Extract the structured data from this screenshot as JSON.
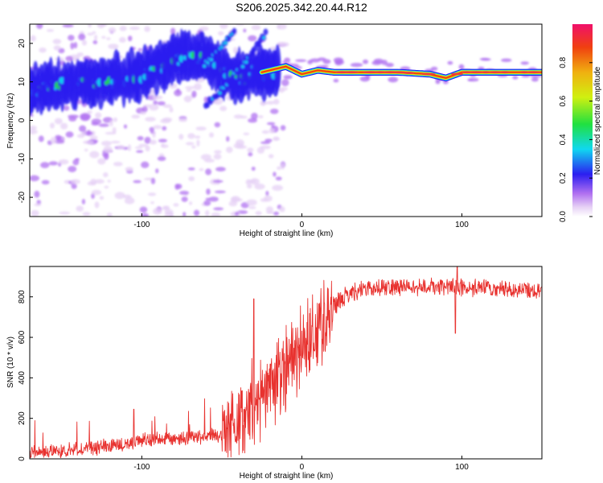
{
  "page": {
    "title": "S206.2025.342.20.44.R12"
  },
  "colors": {
    "snr_line": "#e8322f",
    "ridge": "#ee3b3b",
    "frame": "#000000"
  },
  "chart_data": [
    {
      "type": "heatmap",
      "title": "",
      "xlabel": "Height of straight line (km)",
      "ylabel": "Frequency (Hz)",
      "xlim": [
        -170,
        150
      ],
      "ylim": [
        -25,
        25
      ],
      "xticks": [
        -100,
        0,
        100
      ],
      "yticks": [
        -20,
        -10,
        0,
        10,
        20
      ],
      "colorbar": {
        "label": "Normalized spectral amplitude",
        "range": [
          0,
          1
        ],
        "ticks": [
          0.0,
          0.2,
          0.4,
          0.6,
          0.8
        ]
      },
      "ridge": {
        "x": [
          -170,
          -150,
          -130,
          -110,
          -100,
          -90,
          -80,
          -70,
          -60,
          -50,
          -40,
          -30,
          -20,
          -10,
          0,
          10,
          20,
          40,
          60,
          80,
          90,
          100,
          120,
          150
        ],
        "frequency": [
          8,
          9,
          10,
          11,
          12,
          14,
          16,
          17,
          16,
          13,
          11,
          12,
          13,
          14,
          12,
          13,
          12.5,
          12.5,
          12.5,
          12,
          11,
          12.5,
          12.5,
          12.5
        ]
      },
      "branches": [
        {
          "x": [
            -60,
            -50,
            -40,
            -30,
            -22
          ],
          "frequency": [
            4,
            8,
            13,
            18,
            23
          ]
        },
        {
          "x": [
            -62,
            -55,
            -48,
            -42
          ],
          "frequency": [
            14,
            17,
            20,
            23
          ]
        }
      ]
    },
    {
      "type": "line",
      "title": "",
      "xlabel": "Height of straight line (km)",
      "ylabel": "SNR (10 * v/v)",
      "xlim": [
        -170,
        150
      ],
      "ylim": [
        0,
        950
      ],
      "xticks": [
        -100,
        0,
        100
      ],
      "yticks": [
        0,
        200,
        400,
        600,
        800
      ],
      "trend": {
        "x": [
          -170,
          -150,
          -120,
          -100,
          -80,
          -60,
          -50,
          -45,
          -40,
          -35,
          -30,
          -25,
          -20,
          -15,
          -10,
          -5,
          0,
          5,
          10,
          15,
          20,
          25,
          30,
          40,
          50,
          60,
          80,
          100,
          120,
          150
        ],
        "y": [
          30,
          40,
          60,
          90,
          100,
          110,
          120,
          140,
          180,
          220,
          260,
          300,
          350,
          400,
          450,
          500,
          550,
          600,
          650,
          700,
          750,
          790,
          820,
          840,
          850,
          850,
          850,
          845,
          840,
          830
        ]
      },
      "dips": [
        {
          "x": 96,
          "y": 620
        }
      ],
      "peaks": [
        {
          "x": -105,
          "y": 245
        },
        {
          "x": -30,
          "y": 790
        },
        {
          "x": 97,
          "y": 950
        }
      ]
    }
  ]
}
